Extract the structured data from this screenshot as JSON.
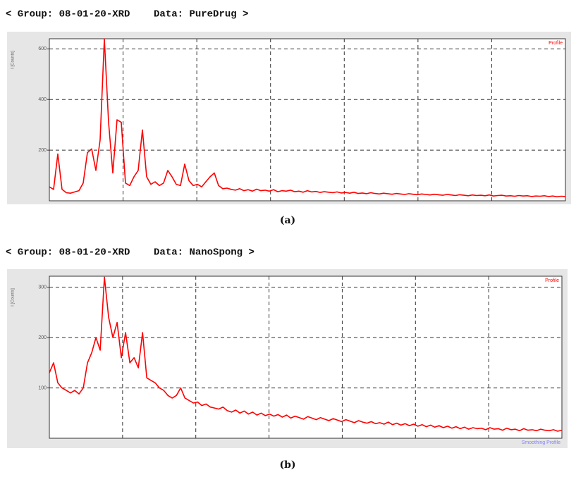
{
  "chart_data": [
    {
      "type": "line",
      "title": "< Group: 08-01-20-XRD    Data: PureDrug >",
      "caption": "(a)",
      "y_label": "I [Counts]",
      "series": [
        {
          "name": "Profile",
          "color": "#ff0000",
          "values": [
            55,
            45,
            185,
            45,
            32,
            30,
            35,
            40,
            70,
            190,
            205,
            120,
            240,
            640,
            310,
            110,
            320,
            310,
            70,
            60,
            95,
            120,
            280,
            95,
            65,
            75,
            60,
            70,
            120,
            95,
            65,
            60,
            145,
            80,
            60,
            65,
            55,
            75,
            95,
            110,
            60,
            48,
            50,
            45,
            42,
            48,
            40,
            44,
            38,
            46,
            40,
            42,
            38,
            44,
            36,
            40,
            38,
            42,
            36,
            38,
            34,
            40,
            35,
            37,
            33,
            36,
            34,
            32,
            35,
            31,
            33,
            30,
            34,
            29,
            31,
            28,
            32,
            29,
            27,
            30,
            28,
            26,
            29,
            27,
            25,
            28,
            26,
            24,
            27,
            25,
            23,
            26,
            24,
            22,
            25,
            23,
            21,
            24,
            22,
            20,
            23,
            21,
            22,
            20,
            23,
            19,
            21,
            22,
            19,
            20,
            18,
            21,
            19,
            20,
            17,
            19,
            18,
            20,
            17,
            19,
            16,
            18,
            17
          ]
        }
      ],
      "ylim": [
        0,
        640
      ],
      "yticks": [
        200,
        400,
        600
      ],
      "grid": true
    },
    {
      "type": "line",
      "title": "< Group: 08-01-20-XRD    Data: NanoSpong >",
      "caption": "(b)",
      "y_label": "I [Counts]",
      "annotation": "Smoothing Profile",
      "annotation_color": "#8080ff",
      "series": [
        {
          "name": "Profile",
          "color": "#ff0000",
          "values": [
            130,
            150,
            110,
            100,
            95,
            90,
            95,
            88,
            100,
            150,
            170,
            200,
            175,
            320,
            240,
            200,
            230,
            160,
            210,
            150,
            160,
            140,
            210,
            120,
            115,
            110,
            100,
            95,
            85,
            80,
            85,
            100,
            80,
            75,
            70,
            72,
            65,
            68,
            62,
            60,
            58,
            62,
            55,
            52,
            56,
            50,
            54,
            48,
            52,
            46,
            50,
            45,
            48,
            44,
            47,
            42,
            46,
            40,
            44,
            41,
            38,
            43,
            40,
            37,
            41,
            38,
            35,
            39,
            36,
            33,
            37,
            34,
            31,
            35,
            32,
            30,
            33,
            29,
            31,
            28,
            32,
            27,
            30,
            26,
            29,
            25,
            28,
            24,
            27,
            23,
            26,
            22,
            25,
            21,
            24,
            20,
            23,
            19,
            22,
            18,
            21,
            19,
            20,
            17,
            21,
            18,
            19,
            16,
            20,
            17,
            18,
            15,
            19,
            16,
            17,
            15,
            18,
            16,
            15,
            17,
            14,
            16
          ]
        }
      ],
      "ylim": [
        0,
        322
      ],
      "yticks": [
        100,
        200,
        300
      ],
      "grid": true
    }
  ]
}
